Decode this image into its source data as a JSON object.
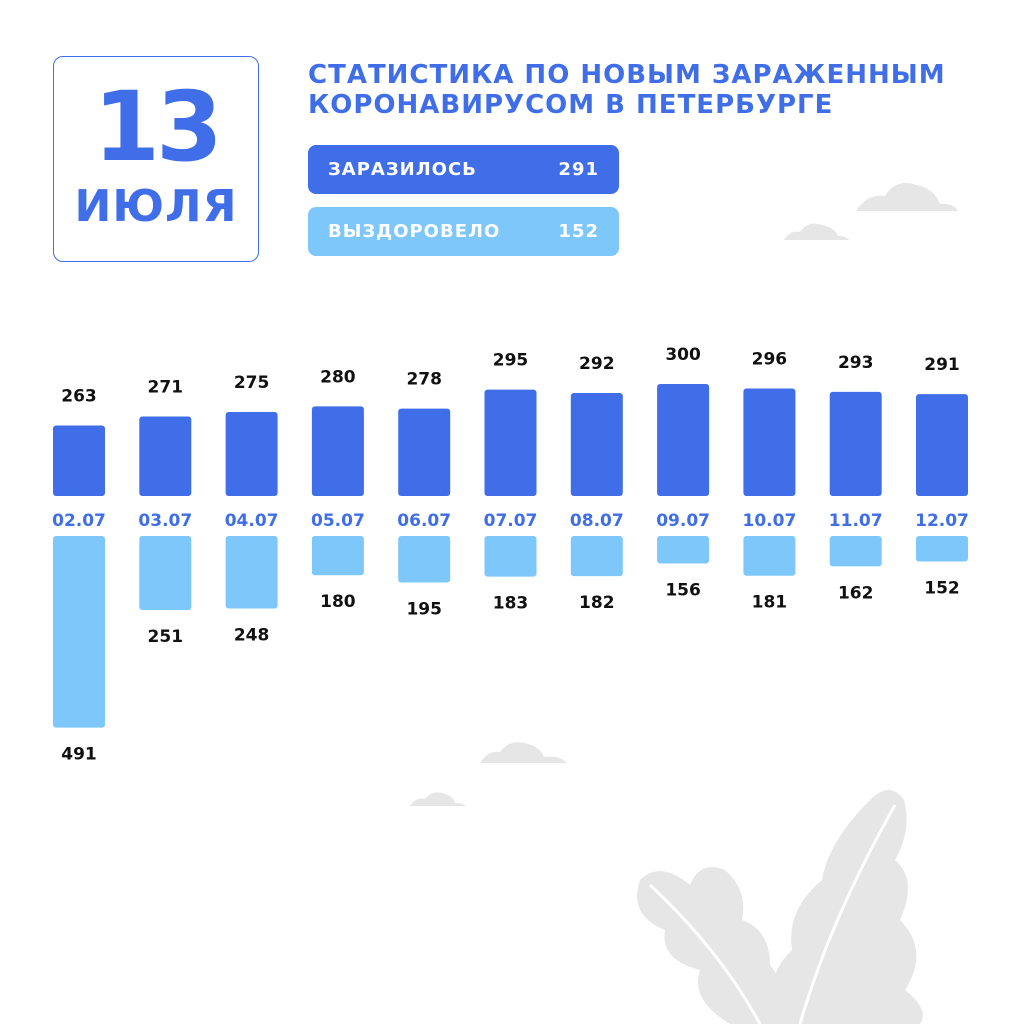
{
  "date": {
    "day": "13",
    "month": "ИЮЛЯ"
  },
  "title": {
    "line1": "СТАТИСТИКА ПО НОВЫМ ЗАРАЖЕННЫМ",
    "line2": "КОРОНАВИРУСОМ В ПЕТЕРБУРГЕ"
  },
  "summary": {
    "infected_label": "ЗАРАЗИЛОСЬ",
    "infected_value": "291",
    "recovered_label": "ВЫЗДОРОВЕЛО",
    "recovered_value": "152"
  },
  "colors": {
    "accent": "#3f6ee8",
    "infected": "#3f6ee8",
    "recovered": "#7ec7fb",
    "label": "#111111",
    "decoration": "#e6e6e6"
  },
  "chart_data": {
    "type": "bar",
    "categories": [
      "02.07",
      "03.07",
      "04.07",
      "05.07",
      "06.07",
      "07.07",
      "08.07",
      "09.07",
      "10.07",
      "11.07",
      "12.07"
    ],
    "series": [
      {
        "name": "ЗАРАЗИЛОСЬ",
        "direction": "up",
        "values": [
          263,
          271,
          275,
          280,
          278,
          295,
          292,
          300,
          296,
          293,
          291
        ]
      },
      {
        "name": "ВЫЗДОРОВЕЛО",
        "direction": "down",
        "values": [
          491,
          251,
          248,
          180,
          195,
          183,
          182,
          156,
          181,
          162,
          152
        ]
      }
    ],
    "grid": false,
    "legend": "top"
  }
}
